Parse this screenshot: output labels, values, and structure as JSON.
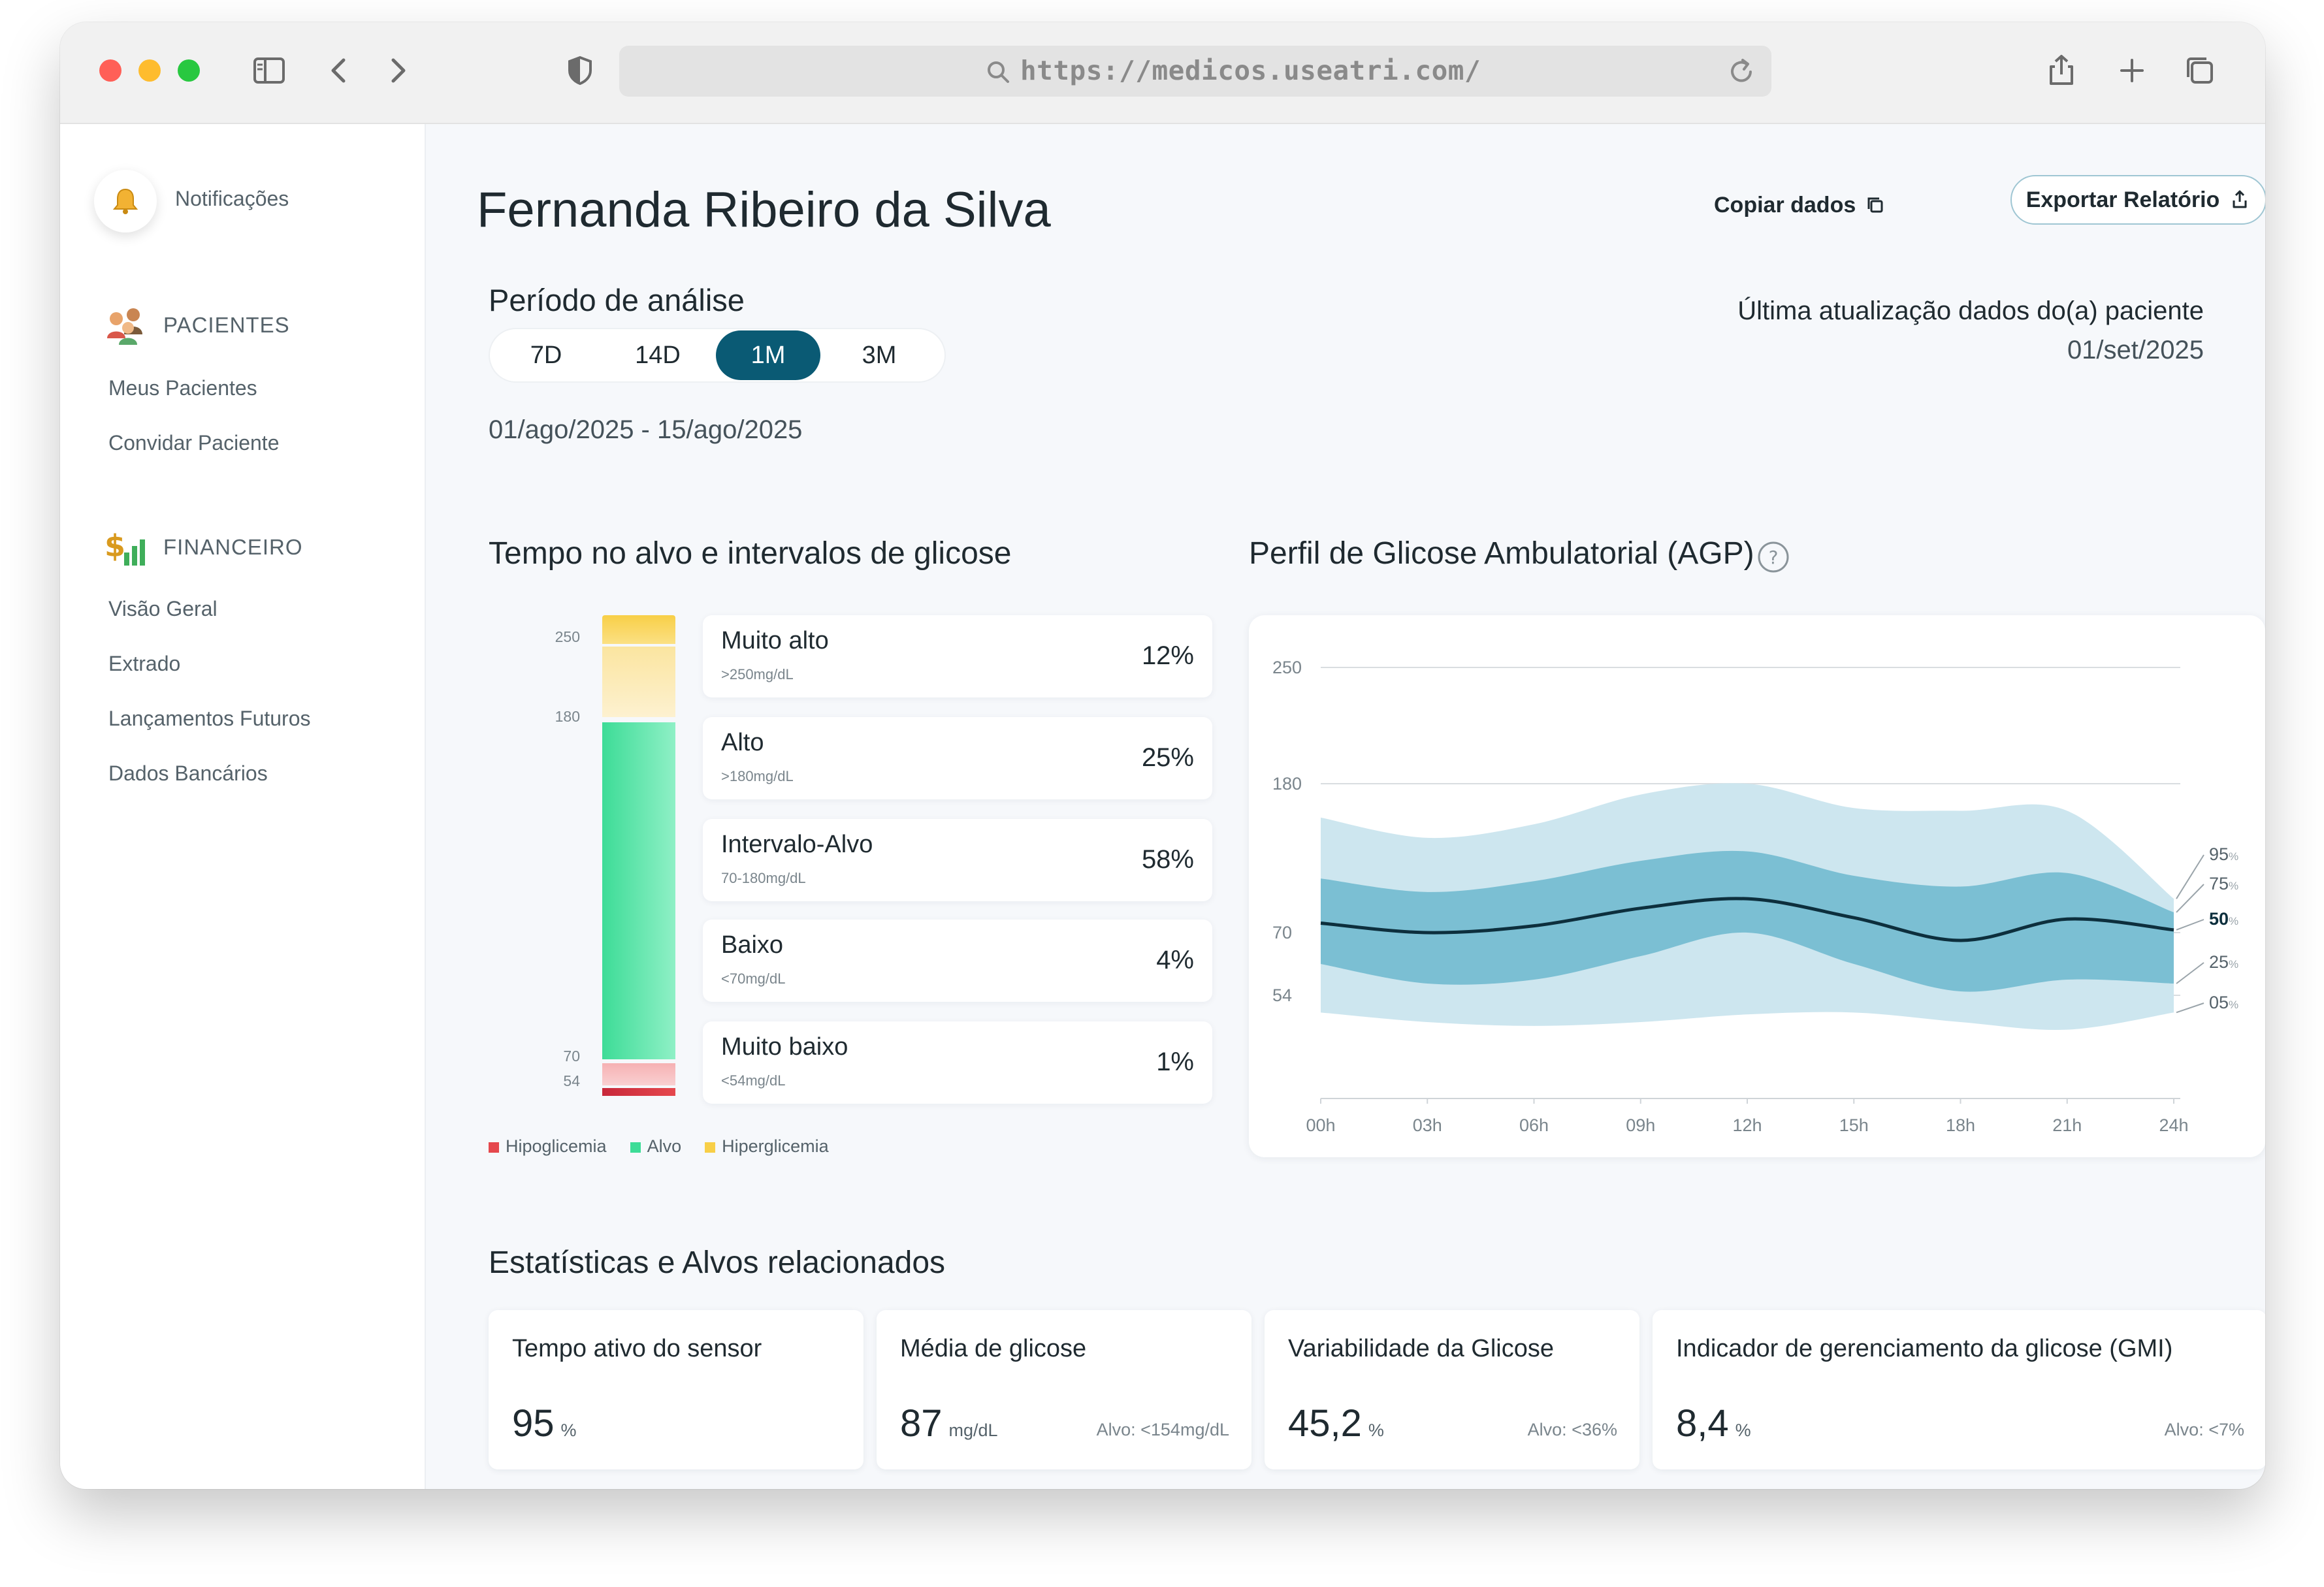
{
  "browser": {
    "url": "https://medicos.useatri.com/"
  },
  "sidebar": {
    "notifications_label": "Notificações",
    "sections": [
      {
        "title": "PACIENTES",
        "items": [
          "Meus Pacientes",
          "Convidar Paciente"
        ]
      },
      {
        "title": "FINANCEIRO",
        "items": [
          "Visão Geral",
          "Extrado",
          "Lançamentos Futuros",
          "Dados Bancários"
        ]
      }
    ]
  },
  "header": {
    "patient_name": "Fernanda Ribeiro da Silva",
    "copy_label": "Copiar dados",
    "export_label": "Exportar Relatório"
  },
  "period": {
    "title": "Período de análise",
    "options": [
      "7D",
      "14D",
      "1M",
      "3M"
    ],
    "selected": "1M",
    "range": "01/ago/2025 - 15/ago/2025",
    "update_label": "Última atualização dados do(a) paciente",
    "update_date": "01/set/2025"
  },
  "tir": {
    "title": "Tempo no alvo e intervalos de glicose",
    "axis": [
      "250",
      "180",
      "70",
      "54"
    ],
    "ranges": [
      {
        "name": "Muito alto",
        "range": ">250mg/dL",
        "pct": "12%",
        "value": 12
      },
      {
        "name": "Alto",
        "range": ">180mg/dL",
        "pct": "25%",
        "value": 25
      },
      {
        "name": "Intervalo-Alvo",
        "range": "70-180mg/dL",
        "pct": "58%",
        "value": 58
      },
      {
        "name": "Baixo",
        "range": "<70mg/dL",
        "pct": "4%",
        "value": 4
      },
      {
        "name": "Muito baixo",
        "range": "<54mg/dL",
        "pct": "1%",
        "value": 1
      }
    ],
    "legend": [
      {
        "label": "Hipoglicemia",
        "color": "#e5484d"
      },
      {
        "label": "Alvo",
        "color": "#3ddc97"
      },
      {
        "label": "Hiperglicemia",
        "color": "#f8cf47"
      }
    ]
  },
  "agp": {
    "title": "Perfil de Glicose Ambulatorial (AGP)"
  },
  "chart_data": {
    "type": "area",
    "title": "Perfil de Glicose Ambulatorial (AGP)",
    "y_ticks": [
      250,
      180,
      70,
      54
    ],
    "x": [
      "00h",
      "03h",
      "06h",
      "09h",
      "12h",
      "15h",
      "18h",
      "21h",
      "24h"
    ],
    "hours": [
      0,
      3,
      6,
      9,
      12,
      15,
      18,
      21,
      24
    ],
    "series": [
      {
        "name": "95%",
        "values": [
          155,
          140,
          150,
          172,
          180,
          162,
          160,
          160,
          95
        ]
      },
      {
        "name": "75%",
        "values": [
          110,
          100,
          108,
          123,
          130,
          112,
          104,
          114,
          85
        ]
      },
      {
        "name": "50%",
        "values": [
          77,
          70,
          75,
          88,
          95,
          81,
          68,
          80,
          72
        ]
      },
      {
        "name": "25%",
        "values": [
          62,
          57,
          58,
          64,
          70,
          62,
          55,
          58,
          57
        ]
      },
      {
        "name": "05%",
        "values": [
          45,
          40,
          38,
          40,
          44,
          45,
          40,
          36,
          45
        ]
      }
    ],
    "percentile_labels": [
      "95",
      "75",
      "50",
      "25",
      "05"
    ],
    "colors": {
      "outer": "#cde6ef",
      "inner": "#7bbfd3",
      "median": "#0d2f3d"
    }
  },
  "stats": {
    "title": "Estatísticas e Alvos relacionados",
    "cards": [
      {
        "title": "Tempo ativo do sensor",
        "value": "95",
        "unit": "%",
        "target": ""
      },
      {
        "title": "Média de glicose",
        "value": "87",
        "unit": "mg/dL",
        "target": "Alvo: <154mg/dL"
      },
      {
        "title": "Variabilidade da Glicose",
        "value": "45,2",
        "unit": "%",
        "target": "Alvo: <36%"
      },
      {
        "title": "Indicador de gerenciamento da glicose (GMI)",
        "value": "8,4",
        "unit": "%",
        "target": "Alvo: <7%"
      }
    ]
  }
}
